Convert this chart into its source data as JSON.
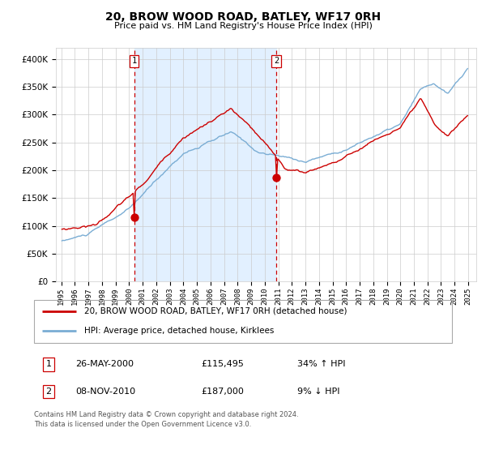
{
  "title": "20, BROW WOOD ROAD, BATLEY, WF17 0RH",
  "subtitle": "Price paid vs. HM Land Registry's House Price Index (HPI)",
  "legend_line1": "20, BROW WOOD ROAD, BATLEY, WF17 0RH (detached house)",
  "legend_line2": "HPI: Average price, detached house, Kirklees",
  "transaction1_label": "1",
  "transaction1_date": "26-MAY-2000",
  "transaction1_price": 115495,
  "transaction1_price_str": "£115,495",
  "transaction1_hpi_str": "34% ↑ HPI",
  "transaction2_label": "2",
  "transaction2_date": "08-NOV-2010",
  "transaction2_price": 187000,
  "transaction2_price_str": "£187,000",
  "transaction2_hpi_str": "9% ↓ HPI",
  "footer": "Contains HM Land Registry data © Crown copyright and database right 2024.\nThis data is licensed under the Open Government Licence v3.0.",
  "red_line_color": "#cc0000",
  "blue_line_color": "#7aadd4",
  "dot_color": "#cc0000",
  "shade_color": "#ddeeff",
  "vline_color": "#cc0000",
  "grid_color": "#cccccc",
  "bg_color": "#ffffff",
  "ylim_min": 0,
  "ylim_max": 420000,
  "yticks": [
    0,
    50000,
    100000,
    150000,
    200000,
    250000,
    300000,
    350000,
    400000
  ],
  "transaction1_x": 2000.38,
  "transaction2_x": 2010.85
}
